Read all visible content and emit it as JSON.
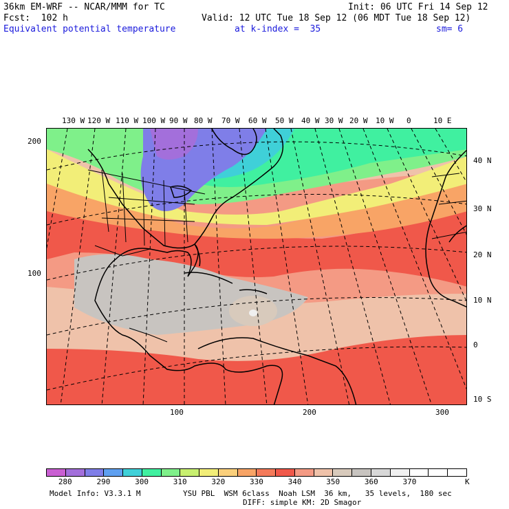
{
  "header": {
    "model_title": "36km EM-WRF -- NCAR/MMM for TC",
    "init_time": "Init: 06 UTC Fri 14 Sep 12",
    "forecast_hour": "Fcst:  102 h",
    "valid_time": "Valid: 12 UTC Tue 18 Sep 12 (06 MDT Tue 18 Sep 12)",
    "field_name": "Equivalent potential temperature",
    "level": "at k-index =  35",
    "smoothing": "sm= 6"
  },
  "map": {
    "top_longitude_labels": [
      "130 W",
      "120 W",
      "110 W",
      "100 W",
      "90 W",
      "80 W",
      "70 W",
      "60 W",
      "50 W",
      "40 W",
      "30 W",
      "20 W",
      "10 W",
      "0",
      "10 E"
    ],
    "right_latitude_labels": [
      "40 N",
      "30 N",
      "20 N",
      "10 N",
      "0",
      "10 S"
    ],
    "left_grid_labels": [
      "200",
      "100"
    ],
    "bottom_grid_labels": [
      "100",
      "200",
      "300"
    ]
  },
  "colorbar": {
    "colors": [
      "#c95fd2",
      "#a36fdb",
      "#7f7ee8",
      "#5fa0f0",
      "#3fd0d8",
      "#40f0a0",
      "#7ff08a",
      "#c8f070",
      "#f2ee78",
      "#fbd07c",
      "#f8a466",
      "#f47a5a",
      "#f0584a",
      "#f49a84",
      "#efc2aa",
      "#d8cabc",
      "#c8c4c0",
      "#d8d8d8",
      "#f0f0f0",
      "#ffffff",
      "#ffffff",
      "#ffffff"
    ],
    "tick_labels": [
      "280",
      "290",
      "300",
      "310",
      "320",
      "330",
      "340",
      "350",
      "360",
      "370"
    ],
    "unit": "K"
  },
  "footer": {
    "model_info": "Model Info: V3.3.1 M",
    "physics": "YSU PBL  WSM 6class  Noah LSM  36 km,   35 levels,  180 sec",
    "diffusion": "DIFF: simple KM: 2D Smagor"
  }
}
